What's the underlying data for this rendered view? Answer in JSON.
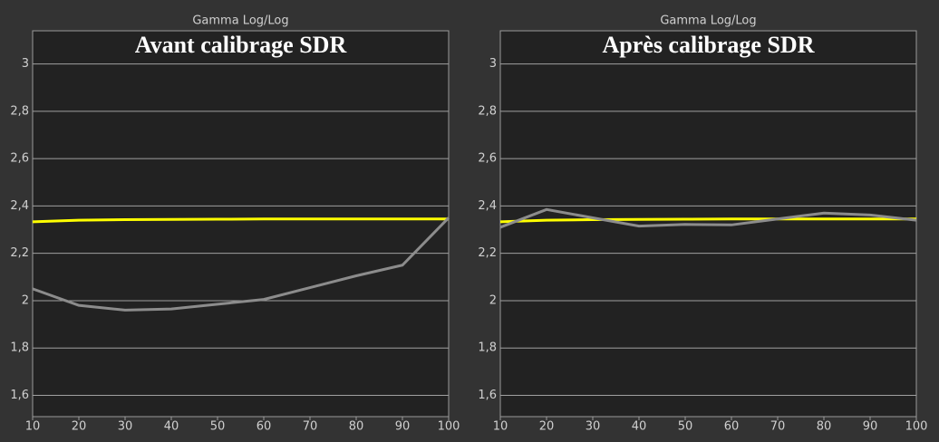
{
  "chart_data": [
    {
      "type": "line",
      "title": "Gamma Log/Log",
      "annotation": "Avant calibrage SDR",
      "x": [
        10,
        20,
        30,
        40,
        50,
        60,
        70,
        80,
        90,
        100
      ],
      "series": [
        {
          "color": "#ffff00",
          "values": [
            2.333,
            2.34,
            2.342,
            2.343,
            2.344,
            2.345,
            2.345,
            2.345,
            2.345,
            2.345
          ]
        },
        {
          "color": "#8c8c8c",
          "values": [
            2.05,
            1.98,
            1.96,
            1.965,
            1.985,
            2.005,
            2.055,
            2.105,
            2.15,
            2.35
          ]
        }
      ],
      "xlim": [
        10,
        100
      ],
      "xticks": [
        10,
        20,
        30,
        40,
        50,
        60,
        70,
        80,
        90,
        100
      ],
      "ylim": [
        1.51,
        3.14
      ],
      "yticks": [
        {
          "value": 1.6,
          "label": "1,6"
        },
        {
          "value": 1.8,
          "label": "1,8"
        },
        2,
        {
          "value": 2.2,
          "label": "2,2"
        },
        {
          "value": 2.4,
          "label": "2,4"
        },
        {
          "value": 2.6,
          "label": "2,6"
        },
        {
          "value": 2.8,
          "label": "2,8"
        },
        3
      ],
      "grid": true
    },
    {
      "type": "line",
      "title": "Gamma Log/Log",
      "annotation": "Après calibrage SDR",
      "x": [
        10,
        20,
        30,
        40,
        50,
        60,
        70,
        80,
        90,
        100
      ],
      "series": [
        {
          "color": "#ffff00",
          "values": [
            2.333,
            2.34,
            2.342,
            2.343,
            2.344,
            2.345,
            2.345,
            2.345,
            2.345,
            2.345
          ]
        },
        {
          "color": "#8c8c8c",
          "values": [
            2.31,
            2.385,
            2.35,
            2.315,
            2.322,
            2.32,
            2.345,
            2.37,
            2.362,
            2.34
          ]
        }
      ],
      "xlim": [
        10,
        100
      ],
      "xticks": [
        10,
        20,
        30,
        40,
        50,
        60,
        70,
        80,
        90,
        100
      ],
      "ylim": [
        1.51,
        3.14
      ],
      "yticks": [
        {
          "value": 1.6,
          "label": "1,6"
        },
        {
          "value": 1.8,
          "label": "1,8"
        },
        2,
        {
          "value": 2.2,
          "label": "2,2"
        },
        {
          "value": 2.4,
          "label": "2,4"
        },
        {
          "value": 2.6,
          "label": "2,6"
        },
        {
          "value": 2.8,
          "label": "2,8"
        },
        3
      ],
      "grid": true
    }
  ]
}
